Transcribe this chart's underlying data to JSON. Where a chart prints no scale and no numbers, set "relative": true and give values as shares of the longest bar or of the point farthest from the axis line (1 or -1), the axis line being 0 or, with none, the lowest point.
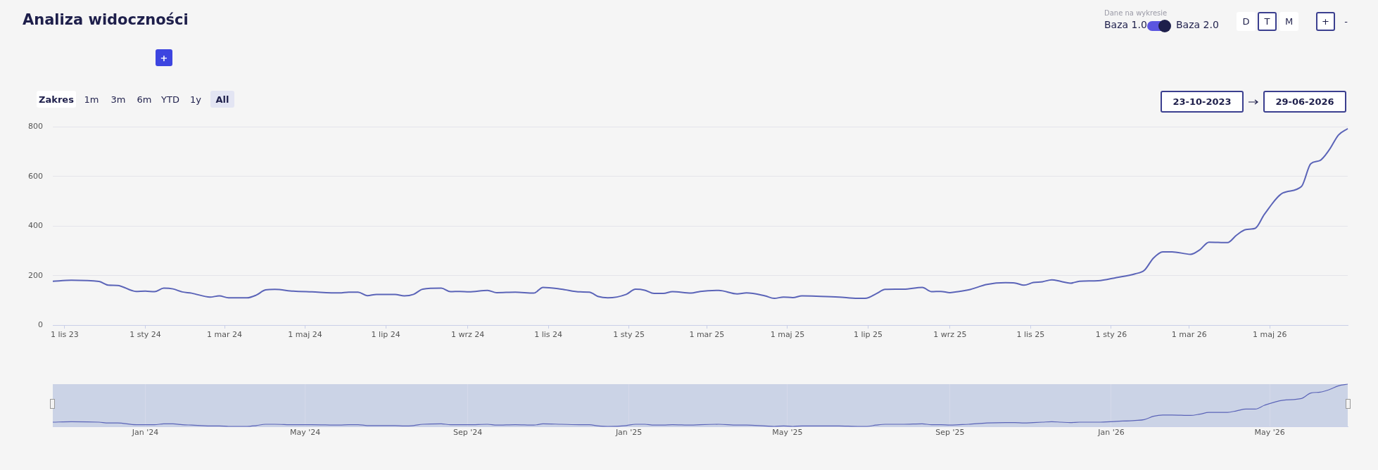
{
  "chart_data": [
    {
      "type": "line",
      "title": "Analiza widoczności",
      "x": [
        "2023-10-23",
        "2023-11-06",
        "2023-11-27",
        "2023-12-04",
        "2023-12-11",
        "2023-12-25",
        "2024-01-01",
        "2024-01-08",
        "2024-01-15",
        "2024-01-22",
        "2024-01-29",
        "2024-02-05",
        "2024-02-19",
        "2024-02-26",
        "2024-03-04",
        "2024-03-18",
        "2024-03-25",
        "2024-04-01",
        "2024-04-08",
        "2024-04-22",
        "2024-05-06",
        "2024-05-27",
        "2024-06-03",
        "2024-06-10",
        "2024-06-17",
        "2024-06-24",
        "2024-07-08",
        "2024-07-15",
        "2024-07-22",
        "2024-07-29",
        "2024-08-12",
        "2024-08-19",
        "2024-08-26",
        "2024-09-02",
        "2024-09-16",
        "2024-09-23",
        "2024-10-07",
        "2024-10-21",
        "2024-10-28",
        "2024-11-11",
        "2024-11-25",
        "2024-12-02",
        "2024-12-09",
        "2024-12-16",
        "2024-12-30",
        "2025-01-06",
        "2025-01-13",
        "2025-01-20",
        "2025-01-27",
        "2025-02-03",
        "2025-02-17",
        "2025-02-24",
        "2025-03-10",
        "2025-03-24",
        "2025-03-31",
        "2025-04-14",
        "2025-04-21",
        "2025-04-28",
        "2025-05-05",
        "2025-05-12",
        "2025-05-26",
        "2025-06-09",
        "2025-06-23",
        "2025-06-30",
        "2025-07-07",
        "2025-07-14",
        "2025-07-28",
        "2025-08-11",
        "2025-08-18",
        "2025-08-25",
        "2025-09-01",
        "2025-09-08",
        "2025-09-15",
        "2025-09-29",
        "2025-10-13",
        "2025-10-20",
        "2025-10-27",
        "2025-11-03",
        "2025-11-10",
        "2025-11-17",
        "2025-11-24",
        "2025-12-01",
        "2025-12-08",
        "2025-12-22",
        "2026-01-05",
        "2026-01-19",
        "2026-01-26",
        "2026-02-02",
        "2026-02-09",
        "2026-02-16",
        "2026-03-02",
        "2026-03-09",
        "2026-03-16",
        "2026-03-30",
        "2026-04-06",
        "2026-04-13",
        "2026-04-20",
        "2026-04-27",
        "2026-05-11",
        "2026-05-25",
        "2026-06-01",
        "2026-06-08",
        "2026-06-15",
        "2026-06-22",
        "2026-06-29"
      ],
      "series": [
        {
          "color": "#5b64b8",
          "values": [
            177,
            181,
            176,
            161,
            160,
            136,
            137,
            135,
            149,
            146,
            134,
            129,
            113,
            118,
            110,
            110,
            121,
            142,
            144,
            137,
            134,
            130,
            133,
            133,
            119,
            124,
            124,
            118,
            124,
            145,
            149,
            135,
            136,
            134,
            140,
            131,
            133,
            129,
            152,
            145,
            134,
            133,
            115,
            110,
            124,
            145,
            141,
            128,
            128,
            135,
            129,
            136,
            140,
            126,
            130,
            118,
            108,
            113,
            111,
            118,
            116,
            113,
            108,
            109,
            126,
            144,
            145,
            152,
            135,
            136,
            131,
            136,
            142,
            164,
            171,
            170,
            161,
            172,
            175,
            183,
            176,
            169,
            177,
            179,
            192,
            207,
            221,
            271,
            296,
            296,
            286,
            304,
            335,
            333,
            364,
            386,
            391,
            448,
            534,
            560,
            652,
            665,
            708,
            768,
            794
          ]
        }
      ],
      "xlim": [
        "2023-10-23",
        "2026-06-29"
      ],
      "xticks": [
        {
          "value": "2023-11-01",
          "label": "1 lis 23"
        },
        {
          "value": "2024-01-01",
          "label": "1 sty 24"
        },
        {
          "value": "2024-03-01",
          "label": "1 mar 24"
        },
        {
          "value": "2024-05-01",
          "label": "1 maj 24"
        },
        {
          "value": "2024-07-01",
          "label": "1 lip 24"
        },
        {
          "value": "2024-09-01",
          "label": "1 wrz 24"
        },
        {
          "value": "2024-11-01",
          "label": "1 lis 24"
        },
        {
          "value": "2025-01-01",
          "label": "1 sty 25"
        },
        {
          "value": "2025-03-01",
          "label": "1 mar 25"
        },
        {
          "value": "2025-05-01",
          "label": "1 maj 25"
        },
        {
          "value": "2025-07-01",
          "label": "1 lip 25"
        },
        {
          "value": "2025-09-01",
          "label": "1 wrz 25"
        },
        {
          "value": "2025-11-01",
          "label": "1 lis 25"
        },
        {
          "value": "2026-01-01",
          "label": "1 sty 26"
        },
        {
          "value": "2026-03-01",
          "label": "1 mar 26"
        },
        {
          "value": "2026-05-01",
          "label": "1 maj 26"
        }
      ],
      "ylim": [
        0,
        800
      ],
      "yticks": [
        0,
        200,
        400,
        600,
        800
      ],
      "grid": "y",
      "legend": false,
      "annotations": [
        "Dane na wykresie",
        "Baza 1.0",
        "Baza 2.0",
        "D",
        "T",
        "M",
        "+",
        "-",
        "+",
        "Zakres",
        "1m",
        "3m",
        "6m",
        "YTD",
        "1y",
        "All",
        "23-10-2023",
        "29-06-2026"
      ]
    },
    {
      "type": "line",
      "x": [
        "2023-10-23",
        "2023-11-06",
        "2023-11-27",
        "2023-12-04",
        "2023-12-11",
        "2023-12-25",
        "2024-01-01",
        "2024-01-08",
        "2024-01-15",
        "2024-01-22",
        "2024-01-29",
        "2024-02-05",
        "2024-02-19",
        "2024-02-26",
        "2024-03-04",
        "2024-03-18",
        "2024-03-25",
        "2024-04-01",
        "2024-04-08",
        "2024-04-22",
        "2024-05-06",
        "2024-05-27",
        "2024-06-03",
        "2024-06-10",
        "2024-06-17",
        "2024-06-24",
        "2024-07-08",
        "2024-07-15",
        "2024-07-22",
        "2024-07-29",
        "2024-08-12",
        "2024-08-19",
        "2024-08-26",
        "2024-09-02",
        "2024-09-16",
        "2024-09-23",
        "2024-10-07",
        "2024-10-21",
        "2024-10-28",
        "2024-11-11",
        "2024-11-25",
        "2024-12-02",
        "2024-12-09",
        "2024-12-16",
        "2024-12-30",
        "2025-01-06",
        "2025-01-13",
        "2025-01-20",
        "2025-01-27",
        "2025-02-03",
        "2025-02-17",
        "2025-02-24",
        "2025-03-10",
        "2025-03-24",
        "2025-03-31",
        "2025-04-14",
        "2025-04-21",
        "2025-04-28",
        "2025-05-05",
        "2025-05-12",
        "2025-05-26",
        "2025-06-09",
        "2025-06-23",
        "2025-06-30",
        "2025-07-07",
        "2025-07-14",
        "2025-07-28",
        "2025-08-11",
        "2025-08-18",
        "2025-08-25",
        "2025-09-01",
        "2025-09-08",
        "2025-09-15",
        "2025-09-29",
        "2025-10-13",
        "2025-10-20",
        "2025-10-27",
        "2025-11-03",
        "2025-11-10",
        "2025-11-17",
        "2025-11-24",
        "2025-12-01",
        "2025-12-08",
        "2025-12-22",
        "2026-01-05",
        "2026-01-19",
        "2026-01-26",
        "2026-02-02",
        "2026-02-09",
        "2026-02-16",
        "2026-03-02",
        "2026-03-09",
        "2026-03-16",
        "2026-03-30",
        "2026-04-06",
        "2026-04-13",
        "2026-04-20",
        "2026-04-27",
        "2026-05-11",
        "2026-05-25",
        "2026-06-01",
        "2026-06-08",
        "2026-06-15",
        "2026-06-22",
        "2026-06-29"
      ],
      "series": [
        {
          "color": "#5b64b8",
          "values": [
            0.1,
            0.11,
            0.1,
            0.08,
            0.08,
            0.04,
            0.04,
            0.04,
            0.06,
            0.06,
            0.04,
            0.03,
            0.01,
            0.01,
            0.0,
            0.0,
            0.02,
            0.05,
            0.05,
            0.04,
            0.04,
            0.03,
            0.04,
            0.04,
            0.02,
            0.02,
            0.02,
            0.01,
            0.02,
            0.05,
            0.06,
            0.04,
            0.04,
            0.04,
            0.05,
            0.03,
            0.04,
            0.03,
            0.06,
            0.05,
            0.04,
            0.04,
            0.01,
            0.0,
            0.02,
            0.05,
            0.05,
            0.03,
            0.03,
            0.04,
            0.03,
            0.04,
            0.05,
            0.03,
            0.03,
            0.01,
            0,
            0.01,
            0.0,
            0.01,
            0.01,
            0.01,
            0,
            0.0,
            0.03,
            0.05,
            0.05,
            0.06,
            0.04,
            0.04,
            0.03,
            0.04,
            0.05,
            0.08,
            0.09,
            0.09,
            0.08,
            0.09,
            0.1,
            0.11,
            0.1,
            0.09,
            0.1,
            0.1,
            0.12,
            0.14,
            0.16,
            0.24,
            0.27,
            0.27,
            0.26,
            0.29,
            0.33,
            0.33,
            0.37,
            0.41,
            0.41,
            0.5,
            0.62,
            0.66,
            0.79,
            0.81,
            0.87,
            0.96,
            1
          ]
        }
      ],
      "xlim": [
        "2023-10-23",
        "2026-06-29"
      ],
      "xticks": [
        {
          "value": "2024-01-01",
          "label": "Jan '24"
        },
        {
          "value": "2024-05-01",
          "label": "May '24"
        },
        {
          "value": "2024-09-01",
          "label": "Sep '24"
        },
        {
          "value": "2025-01-01",
          "label": "Jan '25"
        },
        {
          "value": "2025-05-01",
          "label": "May '25"
        },
        {
          "value": "2025-09-01",
          "label": "Sep '25"
        },
        {
          "value": "2026-01-01",
          "label": "Jan '26"
        },
        {
          "value": "2026-05-01",
          "label": "May '26"
        }
      ],
      "relative": true,
      "grid": "x",
      "legend": false,
      "tick_labels": "x"
    }
  ]
}
